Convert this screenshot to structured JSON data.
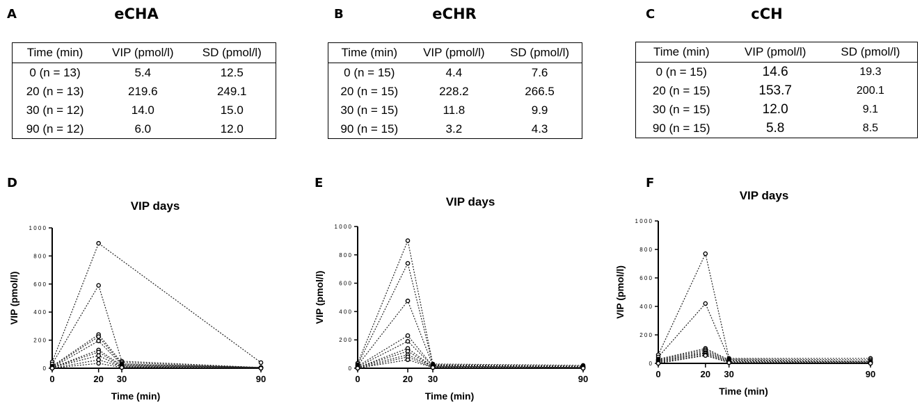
{
  "tables": [
    {
      "letter": "A",
      "title": "eCHA",
      "headers": [
        "Time (min)",
        "VIP (pmol/l)",
        "SD (pmol/l)"
      ],
      "rows": [
        [
          "0 (n = 13)",
          "5.4",
          "12.5"
        ],
        [
          "20 (n = 13)",
          "219.6",
          "249.1"
        ],
        [
          "30 (n = 12)",
          "14.0",
          "15.0"
        ],
        [
          "90 (n = 12)",
          "6.0",
          "12.0"
        ]
      ]
    },
    {
      "letter": "B",
      "title": "eCHR",
      "headers": [
        "Time (min)",
        "VIP (pmol/l)",
        "SD (pmol/l)"
      ],
      "rows": [
        [
          "0 (n = 15)",
          "4.4",
          "7.6"
        ],
        [
          "20 (n = 15)",
          "228.2",
          "266.5"
        ],
        [
          "30 (n = 15)",
          "11.8",
          "9.9"
        ],
        [
          "90 (n = 15)",
          "3.2",
          "4.3"
        ]
      ]
    },
    {
      "letter": "C",
      "title": "cCH",
      "headers": [
        "Time (min)",
        "VIP (pmol/l)",
        "SD (pmol/l)"
      ],
      "rows": [
        [
          "0 (n = 15)",
          "14.6",
          "19.3"
        ],
        [
          "20 (n = 15)",
          "153.7",
          "200.1"
        ],
        [
          "30 (n = 15)",
          "12.0",
          "9.1"
        ],
        [
          "90 (n = 15)",
          "5.8",
          "8.5"
        ]
      ]
    }
  ],
  "chart_data": [
    {
      "letter": "D",
      "type": "line",
      "title": "VIP days",
      "xlabel": "Time (min)",
      "ylabel": "VIP (pmol/l)",
      "xlim": [
        0,
        90
      ],
      "ylim": [
        0,
        1000
      ],
      "xticks": [
        0,
        20,
        30,
        90
      ],
      "yticks": [
        0,
        200,
        400,
        600,
        800,
        1000
      ],
      "ytick_labels": [
        "0",
        "2 0 0",
        "4 0 0",
        "6 0 0",
        "8 0 0",
        "1 0 0 0"
      ],
      "series": [
        {
          "x": [
            0,
            20,
            90
          ],
          "y": [
            45,
            890,
            40
          ]
        },
        {
          "x": [
            0,
            20,
            30,
            90
          ],
          "y": [
            30,
            590,
            50,
            5
          ]
        },
        {
          "x": [
            0,
            20,
            30,
            90
          ],
          "y": [
            15,
            240,
            40,
            5
          ]
        },
        {
          "x": [
            0,
            20,
            30,
            90
          ],
          "y": [
            10,
            225,
            30,
            5
          ]
        },
        {
          "x": [
            0,
            20,
            30,
            90
          ],
          "y": [
            5,
            195,
            25,
            5
          ]
        },
        {
          "x": [
            0,
            20,
            30,
            90
          ],
          "y": [
            5,
            130,
            20,
            5
          ]
        },
        {
          "x": [
            0,
            20,
            30,
            90
          ],
          "y": [
            5,
            115,
            15,
            5
          ]
        },
        {
          "x": [
            0,
            20,
            30,
            90
          ],
          "y": [
            5,
            90,
            10,
            5
          ]
        },
        {
          "x": [
            0,
            20,
            30,
            90
          ],
          "y": [
            0,
            60,
            10,
            0
          ]
        },
        {
          "x": [
            0,
            20,
            30,
            90
          ],
          "y": [
            0,
            35,
            5,
            0
          ]
        }
      ]
    },
    {
      "letter": "E",
      "type": "line",
      "title": "VIP days",
      "xlabel": "Time (min)",
      "ylabel": "VIP (pmol/l)",
      "xlim": [
        0,
        90
      ],
      "ylim": [
        0,
        1000
      ],
      "xticks": [
        0,
        20,
        30,
        90
      ],
      "yticks": [
        0,
        200,
        400,
        600,
        800,
        1000
      ],
      "ytick_labels": [
        "0",
        "2 0 0",
        "4 0 0",
        "6 0 0",
        "8 0 0",
        "1 0 0 0"
      ],
      "series": [
        {
          "x": [
            0,
            20,
            30,
            90
          ],
          "y": [
            35,
            900,
            30,
            20
          ]
        },
        {
          "x": [
            0,
            20,
            30,
            90
          ],
          "y": [
            25,
            740,
            25,
            15
          ]
        },
        {
          "x": [
            0,
            20,
            30,
            90
          ],
          "y": [
            20,
            475,
            20,
            10
          ]
        },
        {
          "x": [
            0,
            20,
            30,
            90
          ],
          "y": [
            15,
            230,
            15,
            10
          ]
        },
        {
          "x": [
            0,
            20,
            30,
            90
          ],
          "y": [
            10,
            190,
            15,
            5
          ]
        },
        {
          "x": [
            0,
            20,
            30,
            90
          ],
          "y": [
            5,
            140,
            10,
            5
          ]
        },
        {
          "x": [
            0,
            20,
            30,
            90
          ],
          "y": [
            5,
            120,
            10,
            5
          ]
        },
        {
          "x": [
            0,
            20,
            30,
            90
          ],
          "y": [
            5,
            95,
            10,
            5
          ]
        },
        {
          "x": [
            0,
            20,
            30,
            90
          ],
          "y": [
            0,
            80,
            5,
            0
          ]
        },
        {
          "x": [
            0,
            20,
            30,
            90
          ],
          "y": [
            0,
            60,
            5,
            0
          ]
        }
      ]
    },
    {
      "letter": "F",
      "type": "line",
      "title": "VIP days",
      "xlabel": "Time (min)",
      "ylabel": "VIP (pmol/l)",
      "xlim": [
        0,
        90
      ],
      "ylim": [
        0,
        1000
      ],
      "xticks": [
        0,
        20,
        30,
        90
      ],
      "yticks": [
        0,
        200,
        400,
        600,
        800,
        1000
      ],
      "ytick_labels": [
        "0",
        "2 0 0",
        "4 0 0",
        "6 0 0",
        "8 0 0",
        "1 0 0 0"
      ],
      "series": [
        {
          "x": [
            0,
            20,
            30,
            90
          ],
          "y": [
            60,
            770,
            35,
            35
          ]
        },
        {
          "x": [
            0,
            20,
            30,
            90
          ],
          "y": [
            45,
            420,
            30,
            25
          ]
        },
        {
          "x": [
            0,
            20,
            30,
            90
          ],
          "y": [
            30,
            105,
            25,
            15
          ]
        },
        {
          "x": [
            0,
            20,
            30,
            90
          ],
          "y": [
            25,
            95,
            20,
            10
          ]
        },
        {
          "x": [
            0,
            20,
            30,
            90
          ],
          "y": [
            20,
            85,
            15,
            10
          ]
        },
        {
          "x": [
            0,
            20,
            30,
            90
          ],
          "y": [
            15,
            75,
            10,
            5
          ]
        },
        {
          "x": [
            0,
            20,
            30,
            90
          ],
          "y": [
            10,
            70,
            10,
            5
          ]
        },
        {
          "x": [
            0,
            20,
            30,
            90
          ],
          "y": [
            5,
            60,
            5,
            5
          ]
        },
        {
          "x": [
            0,
            20,
            30,
            90
          ],
          "y": [
            0,
            55,
            5,
            0
          ]
        }
      ]
    }
  ]
}
